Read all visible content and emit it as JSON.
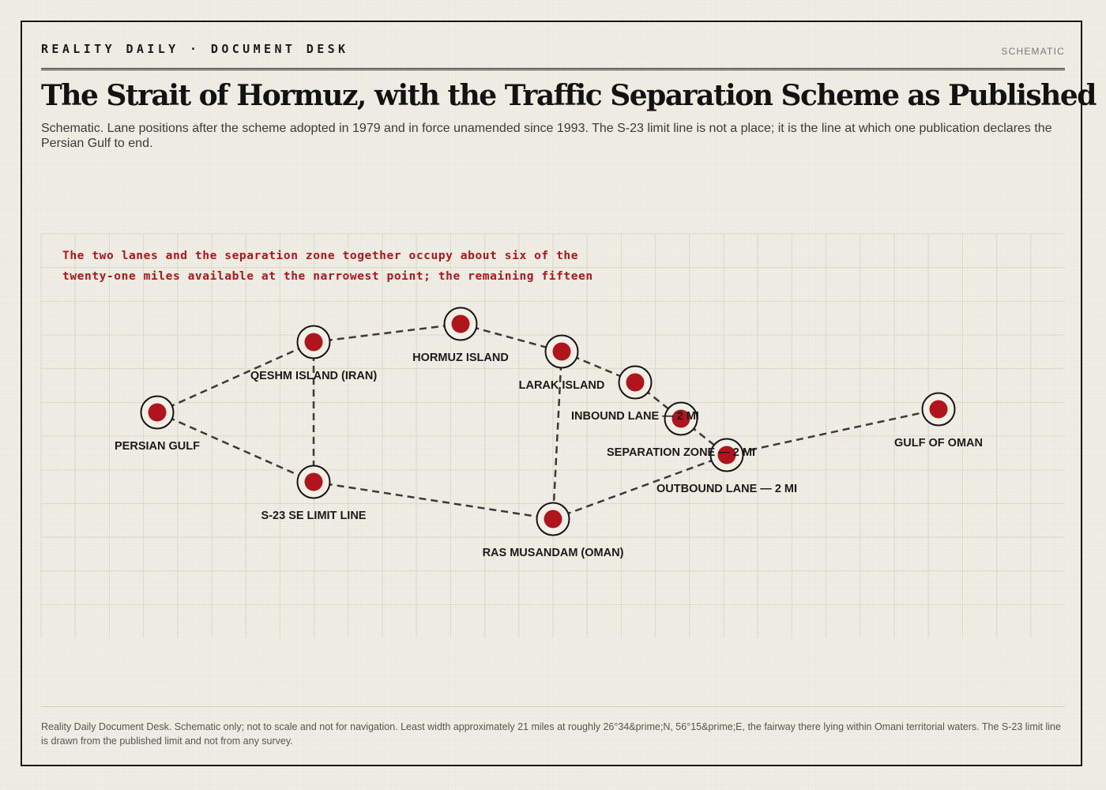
{
  "masthead": {
    "brand": "REALITY DAILY · DOCUMENT DESK",
    "tag": "SCHEMATIC"
  },
  "title": "The Strait of Hormuz, with the Traffic Separation Scheme as Published",
  "subtitle": "Schematic. Lane positions after the scheme adopted in 1979 and in force unamended since 1993. The S-23 limit line is not a place; it is the line at which one publication declares the Persian Gulf to end.",
  "annotation": {
    "line1": "The two lanes and the separation zone together occupy about six of the",
    "line2": "twenty-one miles available at the narrowest point; the remaining fifteen"
  },
  "diagram": {
    "nodes": [
      {
        "id": "persian-gulf",
        "label": "PERSIAN GULF"
      },
      {
        "id": "qeshm",
        "label": "QESHM ISLAND (IRAN)"
      },
      {
        "id": "hormuz",
        "label": "HORMUZ ISLAND"
      },
      {
        "id": "larak",
        "label": "LARAK ISLAND"
      },
      {
        "id": "inbound",
        "label": "INBOUND LANE — 2 MI"
      },
      {
        "id": "separation",
        "label": "SEPARATION ZONE — 2 MI"
      },
      {
        "id": "outbound",
        "label": "OUTBOUND LANE — 2 MI"
      },
      {
        "id": "gulf-of-oman",
        "label": "GULF OF OMAN"
      },
      {
        "id": "s23",
        "label": "S-23 SE LIMIT LINE"
      },
      {
        "id": "musandam",
        "label": "RAS MUSANDAM (OMAN)"
      }
    ],
    "edges": [
      {
        "from": "persian-gulf",
        "to": "qeshm"
      },
      {
        "from": "persian-gulf",
        "to": "s23"
      },
      {
        "from": "qeshm",
        "to": "hormuz"
      },
      {
        "from": "qeshm",
        "to": "s23"
      },
      {
        "from": "hormuz",
        "to": "larak"
      },
      {
        "from": "larak",
        "to": "inbound"
      },
      {
        "from": "larak",
        "to": "musandam"
      },
      {
        "from": "inbound",
        "to": "separation"
      },
      {
        "from": "separation",
        "to": "outbound"
      },
      {
        "from": "outbound",
        "to": "gulf-of-oman"
      },
      {
        "from": "s23",
        "to": "musandam"
      },
      {
        "from": "musandam",
        "to": "outbound"
      }
    ]
  },
  "footer": "Reality Daily Document Desk. Schematic only; not to scale and not for navigation. Least width approximately 21 miles at roughly 26°34&prime;N, 56°15&prime;E, the fairway there lying within Omani territorial waters. The S-23 limit line is drawn from the published limit and not from any survey."
}
